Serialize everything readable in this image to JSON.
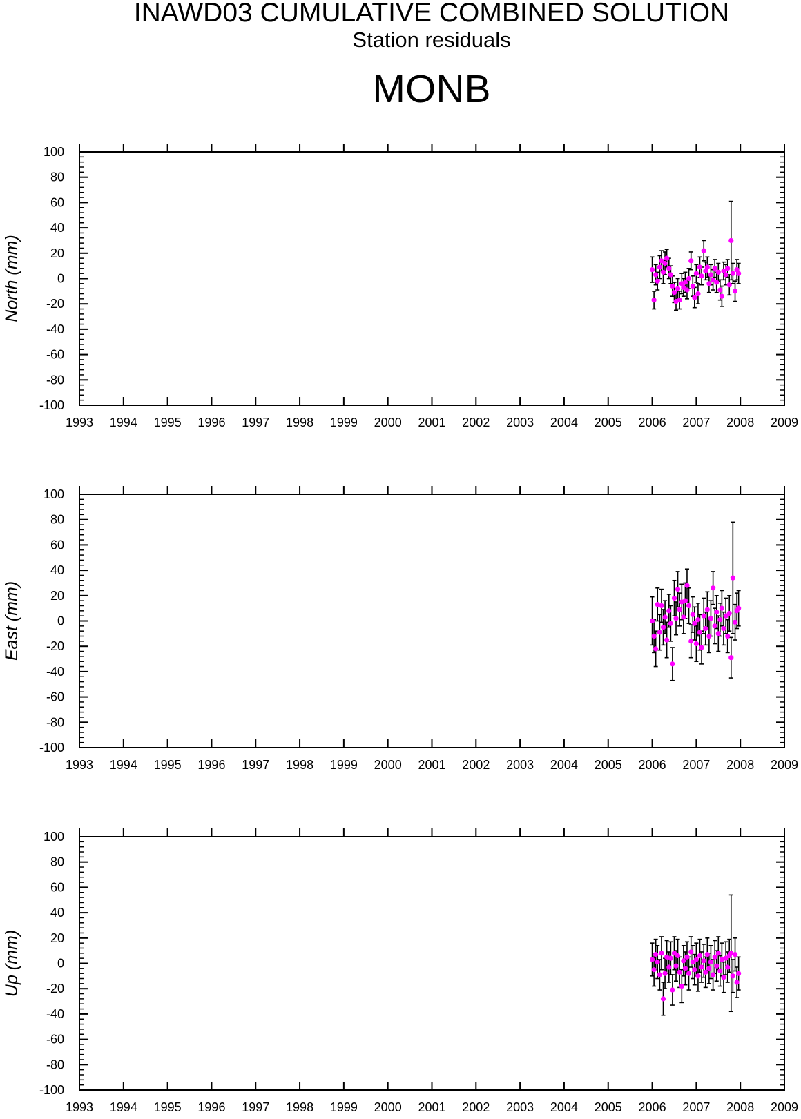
{
  "header": {
    "title": "INAWD03 CUMULATIVE COMBINED SOLUTION",
    "subtitle": "Station residuals",
    "station": "MONB"
  },
  "colors": {
    "marker": "#ff00ff",
    "errorbar": "#000000",
    "axes": "#000000"
  },
  "chart_data": [
    {
      "type": "scatter",
      "ylabel": "North (mm)",
      "xlim": [
        1993,
        2009
      ],
      "ylim": [
        -100,
        100
      ],
      "xticks": [
        "1993",
        "1994",
        "1995",
        "1996",
        "1997",
        "1998",
        "1999",
        "2000",
        "2001",
        "2002",
        "2003",
        "2004",
        "2005",
        "2006",
        "2007",
        "2008",
        "2009"
      ],
      "yticks": [
        "-100",
        "-80",
        "-60",
        "-40",
        "-20",
        "0",
        "20",
        "40",
        "60",
        "80",
        "100"
      ],
      "grid": false,
      "points": [
        {
          "x": 2006.0,
          "y": 7,
          "err": 10
        },
        {
          "x": 2006.04,
          "y": -17,
          "err": 7
        },
        {
          "x": 2006.08,
          "y": 3,
          "err": 8
        },
        {
          "x": 2006.12,
          "y": -2,
          "err": 7
        },
        {
          "x": 2006.17,
          "y": 9,
          "err": 9
        },
        {
          "x": 2006.21,
          "y": 14,
          "err": 8
        },
        {
          "x": 2006.25,
          "y": 5,
          "err": 9
        },
        {
          "x": 2006.29,
          "y": 12,
          "err": 9
        },
        {
          "x": 2006.33,
          "y": 16,
          "err": 7
        },
        {
          "x": 2006.38,
          "y": 8,
          "err": 8
        },
        {
          "x": 2006.42,
          "y": 3,
          "err": 7
        },
        {
          "x": 2006.46,
          "y": -6,
          "err": 8
        },
        {
          "x": 2006.5,
          "y": -11,
          "err": 8
        },
        {
          "x": 2006.54,
          "y": -18,
          "err": 7
        },
        {
          "x": 2006.58,
          "y": -8,
          "err": 8
        },
        {
          "x": 2006.62,
          "y": -17,
          "err": 7
        },
        {
          "x": 2006.67,
          "y": -4,
          "err": 8
        },
        {
          "x": 2006.71,
          "y": -7,
          "err": 7
        },
        {
          "x": 2006.75,
          "y": -3,
          "err": 8
        },
        {
          "x": 2006.79,
          "y": -9,
          "err": 7
        },
        {
          "x": 2006.83,
          "y": 0,
          "err": 8
        },
        {
          "x": 2006.88,
          "y": 14,
          "err": 7
        },
        {
          "x": 2006.92,
          "y": -6,
          "err": 8
        },
        {
          "x": 2006.96,
          "y": -15,
          "err": 8
        },
        {
          "x": 2007.0,
          "y": 4,
          "err": 7
        },
        {
          "x": 2007.04,
          "y": -12,
          "err": 8
        },
        {
          "x": 2007.08,
          "y": 9,
          "err": 8
        },
        {
          "x": 2007.12,
          "y": 2,
          "err": 7
        },
        {
          "x": 2007.17,
          "y": 22,
          "err": 8
        },
        {
          "x": 2007.21,
          "y": 6,
          "err": 7
        },
        {
          "x": 2007.25,
          "y": 9,
          "err": 8
        },
        {
          "x": 2007.29,
          "y": -4,
          "err": 7
        },
        {
          "x": 2007.33,
          "y": 3,
          "err": 8
        },
        {
          "x": 2007.38,
          "y": -1,
          "err": 8
        },
        {
          "x": 2007.42,
          "y": 8,
          "err": 7
        },
        {
          "x": 2007.46,
          "y": -3,
          "err": 8
        },
        {
          "x": 2007.5,
          "y": 5,
          "err": 7
        },
        {
          "x": 2007.54,
          "y": -9,
          "err": 8
        },
        {
          "x": 2007.58,
          "y": -14,
          "err": 8
        },
        {
          "x": 2007.62,
          "y": 6,
          "err": 7
        },
        {
          "x": 2007.67,
          "y": 3,
          "err": 8
        },
        {
          "x": 2007.71,
          "y": 8,
          "err": 7
        },
        {
          "x": 2007.75,
          "y": -5,
          "err": 8
        },
        {
          "x": 2007.79,
          "y": 30,
          "err": 31
        },
        {
          "x": 2007.83,
          "y": 4,
          "err": 8
        },
        {
          "x": 2007.88,
          "y": -10,
          "err": 8
        },
        {
          "x": 2007.92,
          "y": 7,
          "err": 8
        },
        {
          "x": 2007.96,
          "y": 4,
          "err": 8
        }
      ]
    },
    {
      "type": "scatter",
      "ylabel": "East (mm)",
      "xlim": [
        1993,
        2009
      ],
      "ylim": [
        -100,
        100
      ],
      "xticks": [
        "1993",
        "1994",
        "1995",
        "1996",
        "1997",
        "1998",
        "1999",
        "2000",
        "2001",
        "2002",
        "2003",
        "2004",
        "2005",
        "2006",
        "2007",
        "2008",
        "2009"
      ],
      "yticks": [
        "-100",
        "-80",
        "-60",
        "-40",
        "-20",
        "0",
        "20",
        "40",
        "60",
        "80",
        "100"
      ],
      "grid": false,
      "points": [
        {
          "x": 2006.0,
          "y": 0,
          "err": 19
        },
        {
          "x": 2006.04,
          "y": -12,
          "err": 13
        },
        {
          "x": 2006.08,
          "y": -22,
          "err": 14
        },
        {
          "x": 2006.12,
          "y": 13,
          "err": 13
        },
        {
          "x": 2006.17,
          "y": -9,
          "err": 14
        },
        {
          "x": 2006.21,
          "y": 12,
          "err": 13
        },
        {
          "x": 2006.25,
          "y": -5,
          "err": 14
        },
        {
          "x": 2006.29,
          "y": 3,
          "err": 13
        },
        {
          "x": 2006.33,
          "y": -15,
          "err": 14
        },
        {
          "x": 2006.38,
          "y": 8,
          "err": 13
        },
        {
          "x": 2006.42,
          "y": -2,
          "err": 14
        },
        {
          "x": 2006.46,
          "y": -34,
          "err": 13
        },
        {
          "x": 2006.5,
          "y": 18,
          "err": 14
        },
        {
          "x": 2006.54,
          "y": 2,
          "err": 13
        },
        {
          "x": 2006.58,
          "y": 25,
          "err": 14
        },
        {
          "x": 2006.62,
          "y": 9,
          "err": 13
        },
        {
          "x": 2006.67,
          "y": 15,
          "err": 14
        },
        {
          "x": 2006.71,
          "y": 3,
          "err": 13
        },
        {
          "x": 2006.75,
          "y": 16,
          "err": 14
        },
        {
          "x": 2006.79,
          "y": 28,
          "err": 13
        },
        {
          "x": 2006.83,
          "y": 12,
          "err": 14
        },
        {
          "x": 2006.88,
          "y": -16,
          "err": 13
        },
        {
          "x": 2006.92,
          "y": 5,
          "err": 14
        },
        {
          "x": 2006.96,
          "y": -2,
          "err": 13
        },
        {
          "x": 2007.0,
          "y": -18,
          "err": 14
        },
        {
          "x": 2007.04,
          "y": 1,
          "err": 13
        },
        {
          "x": 2007.08,
          "y": -9,
          "err": 14
        },
        {
          "x": 2007.12,
          "y": -21,
          "err": 13
        },
        {
          "x": 2007.17,
          "y": 4,
          "err": 14
        },
        {
          "x": 2007.21,
          "y": -6,
          "err": 13
        },
        {
          "x": 2007.25,
          "y": 9,
          "err": 14
        },
        {
          "x": 2007.29,
          "y": -12,
          "err": 13
        },
        {
          "x": 2007.33,
          "y": 2,
          "err": 14
        },
        {
          "x": 2007.38,
          "y": 26,
          "err": 13
        },
        {
          "x": 2007.42,
          "y": -4,
          "err": 14
        },
        {
          "x": 2007.46,
          "y": 7,
          "err": 13
        },
        {
          "x": 2007.5,
          "y": -10,
          "err": 14
        },
        {
          "x": 2007.54,
          "y": 1,
          "err": 13
        },
        {
          "x": 2007.58,
          "y": 10,
          "err": 14
        },
        {
          "x": 2007.62,
          "y": -6,
          "err": 13
        },
        {
          "x": 2007.67,
          "y": 4,
          "err": 14
        },
        {
          "x": 2007.71,
          "y": -12,
          "err": 13
        },
        {
          "x": 2007.75,
          "y": 6,
          "err": 14
        },
        {
          "x": 2007.79,
          "y": -29,
          "err": 16
        },
        {
          "x": 2007.83,
          "y": 34,
          "err": 44
        },
        {
          "x": 2007.88,
          "y": -1,
          "err": 14
        },
        {
          "x": 2007.92,
          "y": 8,
          "err": 14
        },
        {
          "x": 2007.96,
          "y": 10,
          "err": 14
        }
      ]
    },
    {
      "type": "scatter",
      "ylabel": "Up (mm)",
      "xlim": [
        1993,
        2009
      ],
      "ylim": [
        -100,
        100
      ],
      "xticks": [
        "1993",
        "1994",
        "1995",
        "1996",
        "1997",
        "1998",
        "1999",
        "2000",
        "2001",
        "2002",
        "2003",
        "2004",
        "2005",
        "2006",
        "2007",
        "2008",
        "2009"
      ],
      "yticks": [
        "-100",
        "-80",
        "-60",
        "-40",
        "-20",
        "0",
        "20",
        "40",
        "60",
        "80",
        "100"
      ],
      "grid": false,
      "points": [
        {
          "x": 2006.0,
          "y": 3,
          "err": 13
        },
        {
          "x": 2006.04,
          "y": -5,
          "err": 13
        },
        {
          "x": 2006.08,
          "y": 7,
          "err": 12
        },
        {
          "x": 2006.12,
          "y": 1,
          "err": 13
        },
        {
          "x": 2006.17,
          "y": -9,
          "err": 12
        },
        {
          "x": 2006.21,
          "y": 8,
          "err": 13
        },
        {
          "x": 2006.25,
          "y": -28,
          "err": 13
        },
        {
          "x": 2006.29,
          "y": -8,
          "err": 12
        },
        {
          "x": 2006.33,
          "y": 5,
          "err": 13
        },
        {
          "x": 2006.38,
          "y": -3,
          "err": 12
        },
        {
          "x": 2006.42,
          "y": 4,
          "err": 13
        },
        {
          "x": 2006.46,
          "y": -21,
          "err": 12
        },
        {
          "x": 2006.5,
          "y": 8,
          "err": 13
        },
        {
          "x": 2006.54,
          "y": -2,
          "err": 12
        },
        {
          "x": 2006.58,
          "y": 6,
          "err": 13
        },
        {
          "x": 2006.62,
          "y": -7,
          "err": 12
        },
        {
          "x": 2006.67,
          "y": -18,
          "err": 13
        },
        {
          "x": 2006.71,
          "y": 2,
          "err": 12
        },
        {
          "x": 2006.75,
          "y": -4,
          "err": 13
        },
        {
          "x": 2006.79,
          "y": 5,
          "err": 12
        },
        {
          "x": 2006.83,
          "y": -8,
          "err": 13
        },
        {
          "x": 2006.88,
          "y": 9,
          "err": 12
        },
        {
          "x": 2006.92,
          "y": 1,
          "err": 13
        },
        {
          "x": 2006.96,
          "y": -5,
          "err": 12
        },
        {
          "x": 2007.0,
          "y": 3,
          "err": 13
        },
        {
          "x": 2007.04,
          "y": -10,
          "err": 12
        },
        {
          "x": 2007.08,
          "y": 6,
          "err": 13
        },
        {
          "x": 2007.12,
          "y": -3,
          "err": 12
        },
        {
          "x": 2007.17,
          "y": 2,
          "err": 13
        },
        {
          "x": 2007.21,
          "y": -7,
          "err": 12
        },
        {
          "x": 2007.25,
          "y": 7,
          "err": 13
        },
        {
          "x": 2007.29,
          "y": -4,
          "err": 12
        },
        {
          "x": 2007.33,
          "y": 1,
          "err": 13
        },
        {
          "x": 2007.38,
          "y": -9,
          "err": 12
        },
        {
          "x": 2007.42,
          "y": 5,
          "err": 13
        },
        {
          "x": 2007.46,
          "y": -2,
          "err": 12
        },
        {
          "x": 2007.5,
          "y": 8,
          "err": 13
        },
        {
          "x": 2007.54,
          "y": -6,
          "err": 12
        },
        {
          "x": 2007.58,
          "y": 3,
          "err": 13
        },
        {
          "x": 2007.62,
          "y": -11,
          "err": 12
        },
        {
          "x": 2007.67,
          "y": 4,
          "err": 13
        },
        {
          "x": 2007.71,
          "y": -3,
          "err": 12
        },
        {
          "x": 2007.75,
          "y": 6,
          "err": 13
        },
        {
          "x": 2007.79,
          "y": 8,
          "err": 46
        },
        {
          "x": 2007.83,
          "y": -10,
          "err": 13
        },
        {
          "x": 2007.88,
          "y": 7,
          "err": 13
        },
        {
          "x": 2007.92,
          "y": -15,
          "err": 12
        },
        {
          "x": 2007.96,
          "y": -8,
          "err": 13
        }
      ]
    }
  ]
}
